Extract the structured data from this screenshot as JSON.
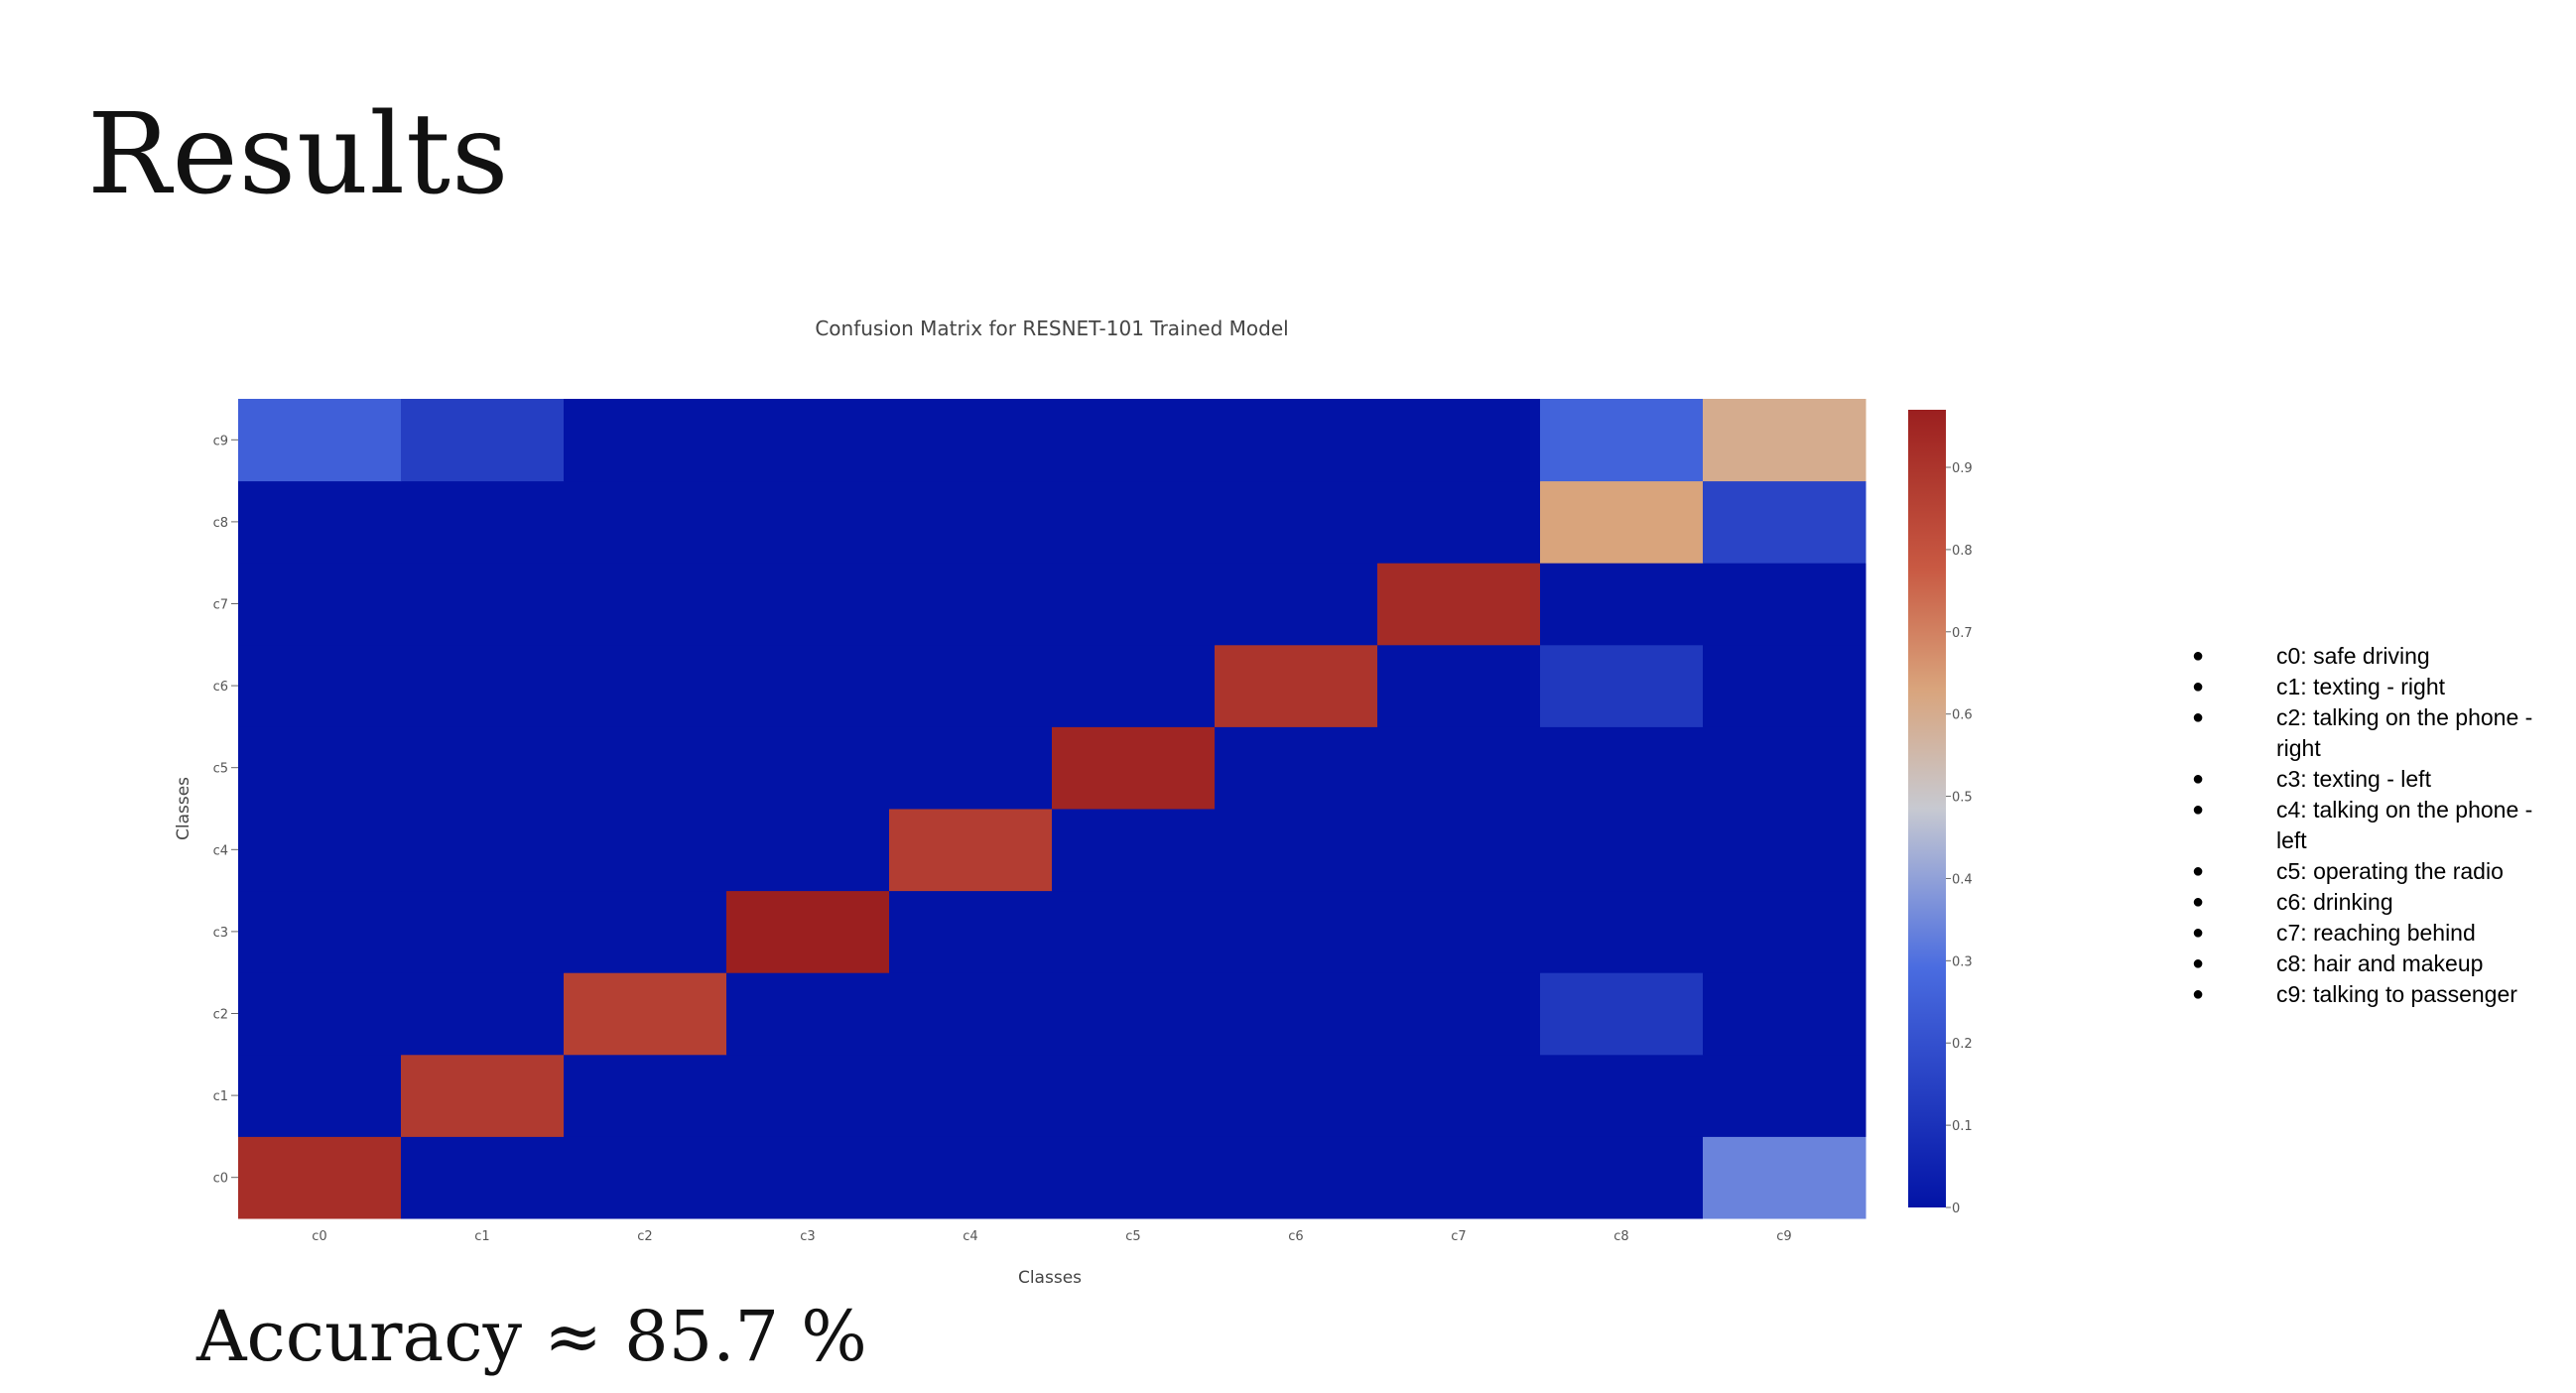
{
  "slide": {
    "title": "Results",
    "accuracy": "Accuracy ≈ 85.7 %"
  },
  "legend_items": [
    "c0: safe driving",
    "c1: texting - right",
    "c2: talking on the phone - right",
    "c3: texting - left",
    "c4: talking on the phone - left",
    "c5: operating the radio",
    "c6: drinking",
    "c7: reaching behind",
    "c8: hair and makeup",
    "c9: talking to passenger"
  ],
  "chart_data": {
    "type": "heatmap",
    "title": "Confusion Matrix for RESNET-101 Trained Model",
    "xlabel": "Classes",
    "ylabel": "Classes",
    "x": [
      "c0",
      "c1",
      "c2",
      "c3",
      "c4",
      "c5",
      "c6",
      "c7",
      "c8",
      "c9"
    ],
    "y": [
      "c0",
      "c1",
      "c2",
      "c3",
      "c4",
      "c5",
      "c6",
      "c7",
      "c8",
      "c9"
    ],
    "z": [
      [
        0.92,
        0.0,
        0.0,
        0.0,
        0.0,
        0.0,
        0.0,
        0.0,
        0.0,
        0.34
      ],
      [
        0.0,
        0.88,
        0.0,
        0.0,
        0.0,
        0.0,
        0.0,
        0.0,
        0.0,
        0.0
      ],
      [
        0.0,
        0.0,
        0.86,
        0.0,
        0.0,
        0.0,
        0.0,
        0.0,
        0.12,
        0.0
      ],
      [
        0.0,
        0.0,
        0.0,
        0.97,
        0.0,
        0.0,
        0.0,
        0.0,
        0.0,
        0.0
      ],
      [
        0.0,
        0.0,
        0.0,
        0.0,
        0.87,
        0.0,
        0.0,
        0.0,
        0.0,
        0.0
      ],
      [
        0.0,
        0.0,
        0.0,
        0.0,
        0.0,
        0.95,
        0.0,
        0.0,
        0.0,
        0.0
      ],
      [
        0.0,
        0.0,
        0.0,
        0.0,
        0.0,
        0.0,
        0.9,
        0.0,
        0.12,
        0.0
      ],
      [
        0.0,
        0.0,
        0.0,
        0.0,
        0.0,
        0.0,
        0.0,
        0.93,
        0.0,
        0.0
      ],
      [
        0.0,
        0.0,
        0.0,
        0.0,
        0.0,
        0.0,
        0.0,
        0.0,
        0.63,
        0.16
      ],
      [
        0.25,
        0.14,
        0.0,
        0.0,
        0.0,
        0.0,
        0.0,
        0.0,
        0.26,
        0.6
      ]
    ],
    "zlim": [
      0,
      0.97
    ],
    "colorbar_ticks": [
      0,
      0.1,
      0.2,
      0.3,
      0.4,
      0.5,
      0.6,
      0.7,
      0.8,
      0.9
    ],
    "colorbar_tick_labels": [
      "0",
      "0.1",
      "0.2",
      "0.3",
      "0.4",
      "0.5",
      "0.6",
      "0.7",
      "0.8",
      "0.9"
    ],
    "colorscale": [
      [
        0.0,
        "#0213a6"
      ],
      [
        0.3,
        "#4a6ce0"
      ],
      [
        0.5,
        "#c7c9d1"
      ],
      [
        0.65,
        "#d9a47c"
      ],
      [
        0.8,
        "#c95a43"
      ],
      [
        1.0,
        "#9b1f1f"
      ]
    ],
    "grid": false
  }
}
